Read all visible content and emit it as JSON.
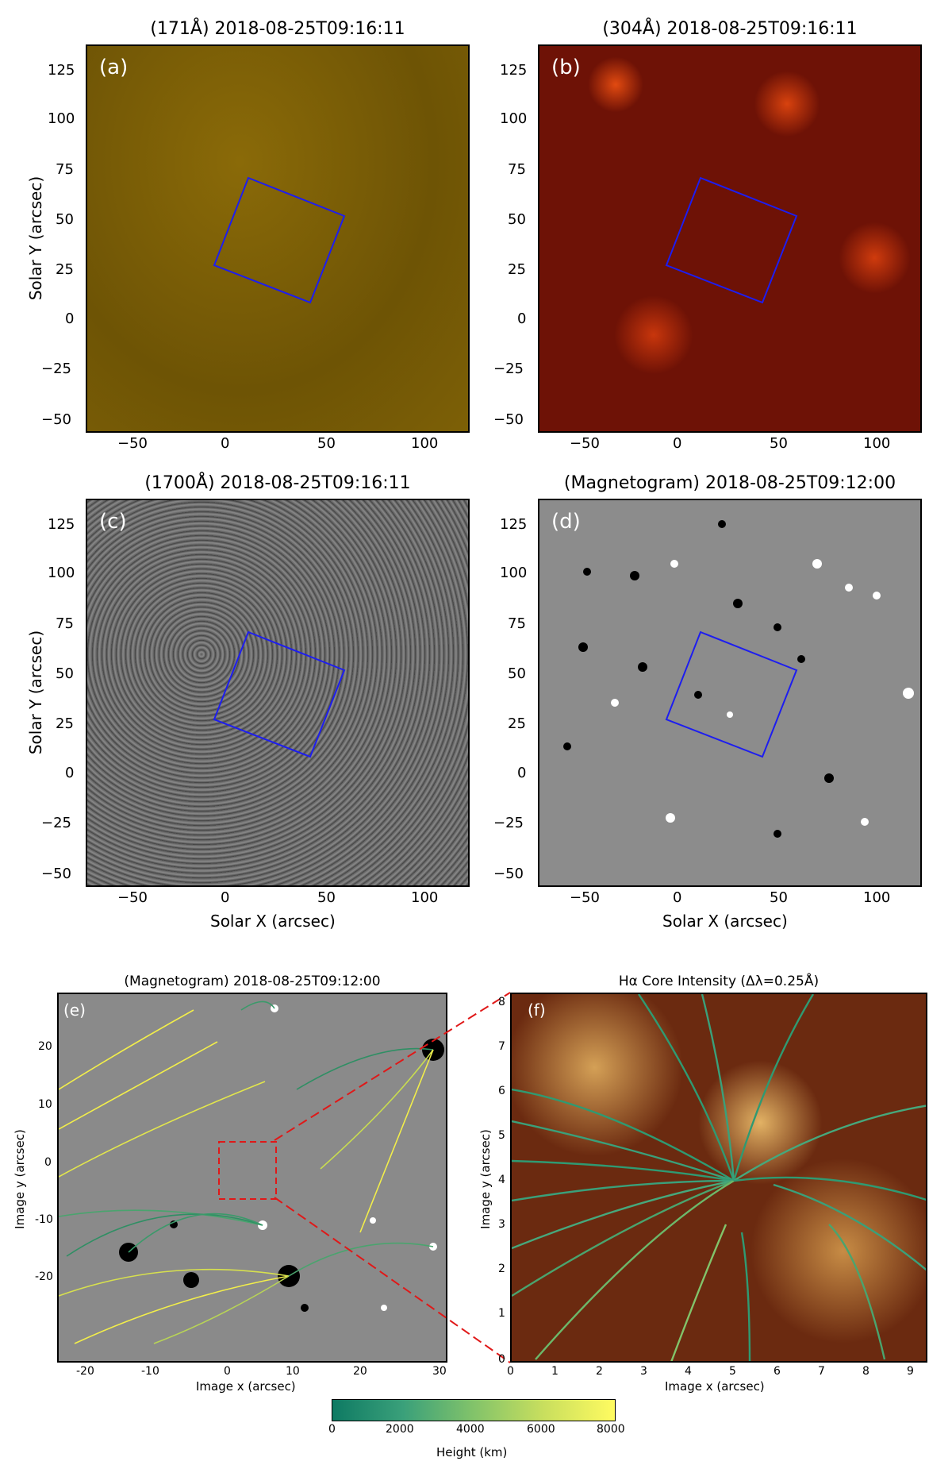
{
  "panels": {
    "a": {
      "label": "(a)",
      "title": "(171Å) 2018-08-25T09:16:11"
    },
    "b": {
      "label": "(b)",
      "title": "(304Å) 2018-08-25T09:16:11"
    },
    "c": {
      "label": "(c)",
      "title": "(1700Å) 2018-08-25T09:16:11"
    },
    "d": {
      "label": "(d)",
      "title": "(Magnetogram) 2018-08-25T09:12:00"
    },
    "e": {
      "label": "(e)",
      "title": "(Magnetogram) 2018-08-25T09:12:00"
    },
    "f": {
      "label": "(f)",
      "title": "Hα Core Intensity (Δλ=0.25Å)"
    }
  },
  "axes": {
    "solar_x": "Solar X (arcsec)",
    "solar_y": "Solar Y (arcsec)",
    "image_x": "Image x (arcsec)",
    "image_y": "Image y (arcsec)",
    "solar_x_ticks": [
      "−50",
      "0",
      "50",
      "100"
    ],
    "solar_y_ticks": [
      "125",
      "100",
      "75",
      "50",
      "25",
      "0",
      "−25",
      "−50"
    ],
    "e_x_ticks": [
      "-20",
      "-10",
      "0",
      "10",
      "20",
      "30"
    ],
    "e_y_ticks": [
      "20",
      "10",
      "0",
      "-10",
      "-20"
    ],
    "f_x_ticks": [
      "0",
      "1",
      "2",
      "3",
      "4",
      "5",
      "6",
      "7",
      "8",
      "9"
    ],
    "f_y_ticks": [
      "8",
      "7",
      "6",
      "5",
      "4",
      "3",
      "2",
      "1",
      "0"
    ]
  },
  "colorbar": {
    "label": "Height (km)",
    "ticks": [
      "0",
      "2000",
      "4000",
      "6000",
      "8000"
    ]
  }
}
